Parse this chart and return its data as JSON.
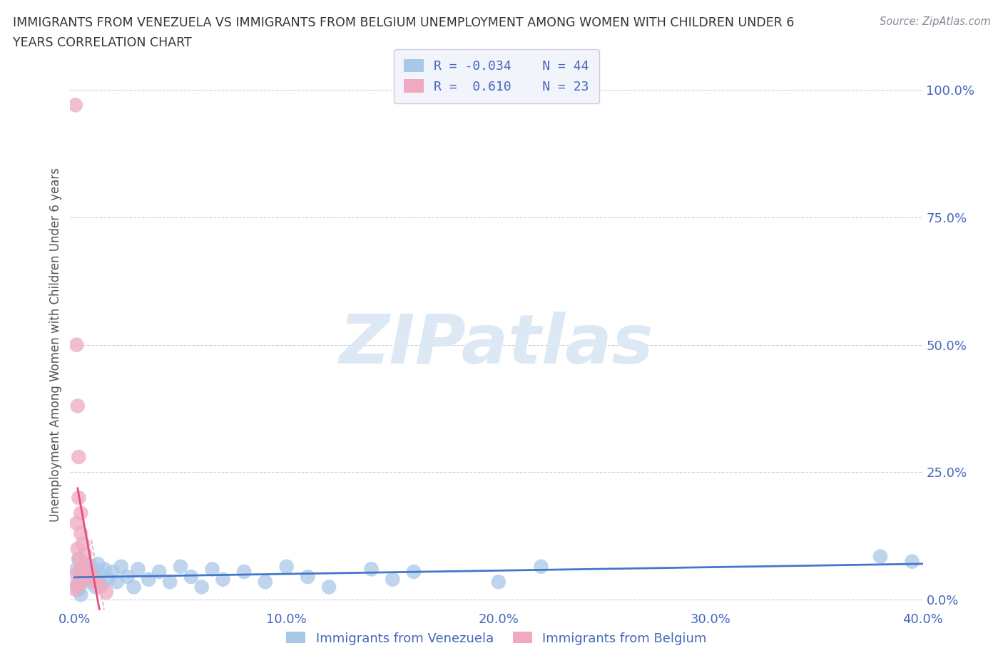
{
  "title_line1": "IMMIGRANTS FROM VENEZUELA VS IMMIGRANTS FROM BELGIUM UNEMPLOYMENT AMONG WOMEN WITH CHILDREN UNDER 6",
  "title_line2": "YEARS CORRELATION CHART",
  "source_text": "Source: ZipAtlas.com",
  "ylabel": "Unemployment Among Women with Children Under 6 years",
  "xlim": [
    -0.002,
    0.4
  ],
  "ylim": [
    -0.02,
    1.02
  ],
  "xticks": [
    0.0,
    0.1,
    0.2,
    0.3,
    0.4
  ],
  "yticks": [
    0.0,
    0.25,
    0.5,
    0.75,
    1.0
  ],
  "xticklabels": [
    "0.0%",
    "10.0%",
    "20.0%",
    "30.0%",
    "40.0%"
  ],
  "yticklabels": [
    "0.0%",
    "25.0%",
    "50.0%",
    "75.0%",
    "100.0%"
  ],
  "background_color": "#ffffff",
  "grid_color": "#ccccdd",
  "venezuela_color": "#a8c8e8",
  "belgium_color": "#f0aac0",
  "venezuela_trend_color": "#4477cc",
  "belgium_trend_color": "#e05080",
  "legend_box_color": "#f2f4fb",
  "legend_border_color": "#ccccdd",
  "legend_text_color": "#4466bb",
  "title_color": "#333333",
  "source_color": "#888899",
  "watermark_color": "#dde8f5",
  "R_venezuela": -0.034,
  "N_venezuela": 44,
  "R_belgium": 0.61,
  "N_belgium": 23,
  "ven_x": [
    0.001,
    0.001,
    0.002,
    0.002,
    0.003,
    0.003,
    0.004,
    0.005,
    0.006,
    0.007,
    0.008,
    0.009,
    0.01,
    0.011,
    0.012,
    0.013,
    0.014,
    0.016,
    0.018,
    0.02,
    0.022,
    0.025,
    0.028,
    0.03,
    0.035,
    0.04,
    0.045,
    0.05,
    0.055,
    0.06,
    0.065,
    0.07,
    0.08,
    0.09,
    0.1,
    0.11,
    0.12,
    0.14,
    0.15,
    0.16,
    0.2,
    0.22,
    0.38,
    0.395
  ],
  "ven_y": [
    0.06,
    0.03,
    0.08,
    0.02,
    0.05,
    0.01,
    0.04,
    0.07,
    0.055,
    0.035,
    0.065,
    0.045,
    0.025,
    0.07,
    0.05,
    0.03,
    0.06,
    0.04,
    0.055,
    0.035,
    0.065,
    0.045,
    0.025,
    0.06,
    0.04,
    0.055,
    0.035,
    0.065,
    0.045,
    0.025,
    0.06,
    0.04,
    0.055,
    0.035,
    0.065,
    0.045,
    0.025,
    0.06,
    0.04,
    0.055,
    0.035,
    0.065,
    0.085,
    0.075
  ],
  "bel_x": [
    0.0005,
    0.0005,
    0.001,
    0.001,
    0.001,
    0.0015,
    0.0015,
    0.002,
    0.002,
    0.002,
    0.002,
    0.003,
    0.003,
    0.003,
    0.004,
    0.005,
    0.005,
    0.006,
    0.007,
    0.008,
    0.01,
    0.012,
    0.015
  ],
  "bel_y": [
    0.97,
    0.02,
    0.5,
    0.15,
    0.05,
    0.38,
    0.1,
    0.28,
    0.2,
    0.08,
    0.03,
    0.17,
    0.13,
    0.06,
    0.11,
    0.09,
    0.04,
    0.07,
    0.055,
    0.045,
    0.035,
    0.025,
    0.015
  ]
}
